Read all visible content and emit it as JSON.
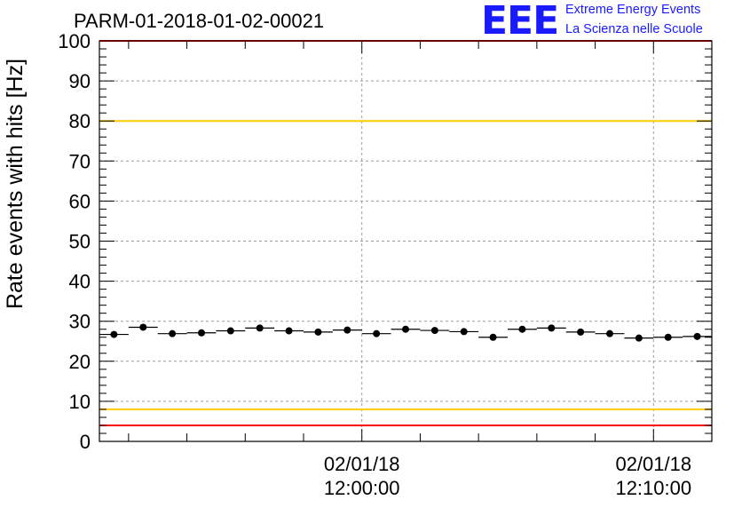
{
  "header": {
    "run_title": "PARM-01-2018-01-02-00021",
    "logo_mark": "EEE",
    "logo_line1": "Extreme Energy Events",
    "logo_line2": "La Scienza nelle Scuole"
  },
  "colors": {
    "threshold_red": "#ff0000",
    "threshold_yellow": "#ffcc00",
    "logo_blue": "#1a1aff",
    "markers": "#000000"
  },
  "chart_data": {
    "type": "scatter",
    "title": "PARM-01-2018-01-02-00021",
    "ylabel": "Rate events with hits [Hz]",
    "xlabel": "",
    "ylim": [
      0,
      100
    ],
    "yticks": [
      0,
      10,
      20,
      30,
      40,
      50,
      60,
      70,
      80,
      90,
      100
    ],
    "xticks": [
      {
        "date": "02/01/18",
        "time": "12:00:00"
      },
      {
        "date": "02/01/18",
        "time": "12:10:00"
      }
    ],
    "x_minutes": [
      -8.75,
      -8.25,
      -7.75,
      -7.25,
      -6.75,
      -6.25,
      -5.75,
      -5.25,
      -4.75,
      -4.25,
      -3.75,
      -3.25,
      -2.75,
      -2.25,
      -1.75,
      -1.25,
      -0.75,
      -0.25,
      0.25,
      0.75,
      1.25,
      1.75,
      2.25,
      2.75,
      3.25,
      3.75,
      4.25,
      4.75,
      5.25,
      5.75,
      6.25,
      6.75,
      7.25,
      7.75,
      8.25,
      8.75,
      9.25,
      9.75,
      10.25,
      10.75,
      11.25,
      11.75
    ],
    "series": [
      {
        "x": [
          -8.5,
          -7.5,
          -6.5,
          -5.5,
          -4.5,
          -3.5,
          -2.5,
          -1.5,
          -0.5,
          0.5,
          1.5,
          2.5,
          3.5,
          4.5,
          5.5,
          6.5,
          7.5,
          8.5,
          9.5,
          10.5,
          11.5
        ],
        "values": [
          26.7,
          28.5,
          26.9,
          27.1,
          27.6,
          28.3,
          27.6,
          27.3,
          27.8,
          26.9,
          28.0,
          27.7,
          27.4,
          26.0,
          28.0,
          28.3,
          27.3,
          26.9,
          25.8,
          26.0,
          26.2
        ],
        "xerr": 0.5
      }
    ],
    "threshold_lines": [
      {
        "value": 100,
        "color": "#ff0000"
      },
      {
        "value": 80,
        "color": "#ffcc00"
      },
      {
        "value": 8,
        "color": "#ffcc00"
      },
      {
        "value": 4,
        "color": "#ff0000"
      }
    ],
    "x_range_minutes": [
      -9.0,
      12.0
    ],
    "grid": true,
    "legend": "none"
  }
}
